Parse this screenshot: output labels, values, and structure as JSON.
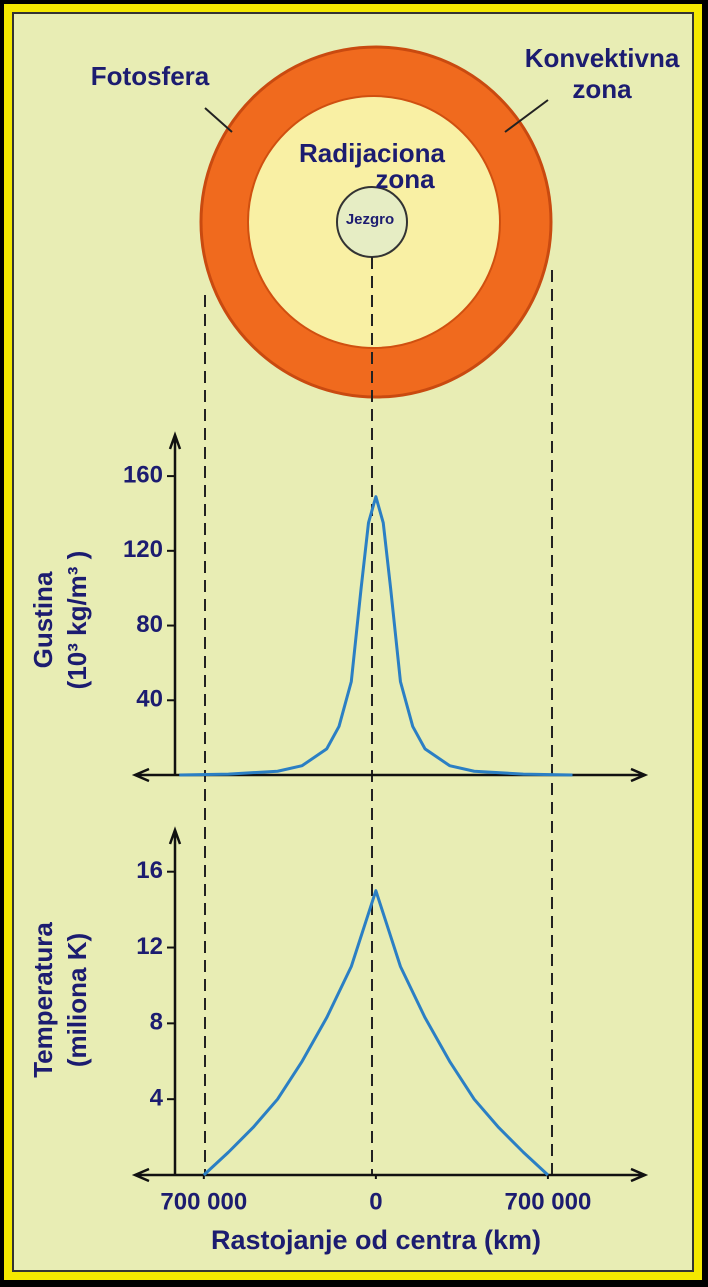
{
  "diagram": {
    "labels": {
      "photosphere": "Fotosfera",
      "convective": [
        "Konvektivna",
        "zona"
      ],
      "radiative": [
        "Radijaciona",
        "zona"
      ],
      "core": "Jezgro"
    }
  },
  "chart_data": [
    {
      "type": "line",
      "ylabel": [
        "Gustina",
        "(10³ kg/m³ )"
      ],
      "x": [
        -800000,
        -600000,
        -400000,
        -300000,
        -200000,
        -150000,
        -100000,
        -60000,
        -30000,
        0,
        30000,
        60000,
        100000,
        150000,
        200000,
        300000,
        400000,
        600000,
        800000
      ],
      "series": [
        {
          "color": "#2b7fc4",
          "values": [
            0,
            0.5,
            2,
            5,
            14,
            26,
            50,
            100,
            135,
            149,
            135,
            100,
            50,
            26,
            14,
            5,
            2,
            0.5,
            0
          ]
        }
      ],
      "xlim": [
        -980000,
        1095000
      ],
      "ylim": [
        0,
        182
      ],
      "yticks": [
        40,
        80,
        120,
        160
      ]
    },
    {
      "type": "line",
      "ylabel": [
        "Temperatura",
        "(miliona K)"
      ],
      "xlabel": "Rastojanje od centra (km)",
      "x": [
        -700000,
        -600000,
        -500000,
        -400000,
        -300000,
        -200000,
        -100000,
        -50000,
        0,
        50000,
        100000,
        200000,
        300000,
        400000,
        500000,
        600000,
        700000
      ],
      "series": [
        {
          "color": "#2b7fc4",
          "values": [
            0,
            1.2,
            2.5,
            4,
            6,
            8.3,
            11,
            13,
            15,
            13,
            11,
            8.3,
            6,
            4,
            2.5,
            1.2,
            0
          ]
        }
      ],
      "xlim": [
        -980000,
        1095000
      ],
      "ylim": [
        0,
        18.2
      ],
      "yticks": [
        4,
        8,
        12,
        16
      ],
      "xticks": [
        {
          "value": -700000,
          "label": "700 000"
        },
        0,
        {
          "value": 700000,
          "label": "700 000"
        }
      ]
    }
  ]
}
